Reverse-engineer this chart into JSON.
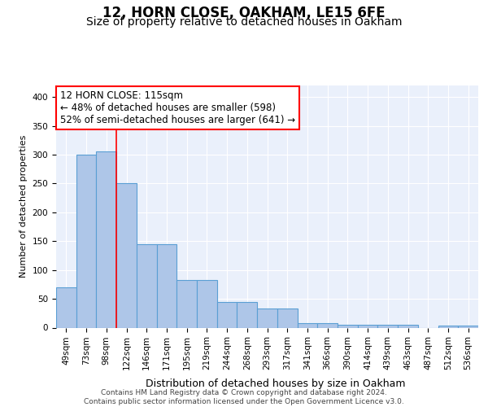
{
  "title1": "12, HORN CLOSE, OAKHAM, LE15 6FE",
  "title2": "Size of property relative to detached houses in Oakham",
  "xlabel": "Distribution of detached houses by size in Oakham",
  "ylabel": "Number of detached properties",
  "bar_labels": [
    "49sqm",
    "73sqm",
    "98sqm",
    "122sqm",
    "146sqm",
    "171sqm",
    "195sqm",
    "219sqm",
    "244sqm",
    "268sqm",
    "293sqm",
    "317sqm",
    "341sqm",
    "366sqm",
    "390sqm",
    "414sqm",
    "439sqm",
    "463sqm",
    "487sqm",
    "512sqm",
    "536sqm"
  ],
  "bar_heights": [
    70,
    300,
    305,
    250,
    145,
    145,
    83,
    83,
    44,
    44,
    33,
    33,
    8,
    8,
    5,
    5,
    5,
    5,
    0,
    3,
    3
  ],
  "bar_color": "#aec6e8",
  "bar_edge_color": "#5a9fd4",
  "vline_x": 2.5,
  "vline_color": "red",
  "annotation_text": "12 HORN CLOSE: 115sqm\n← 48% of detached houses are smaller (598)\n52% of semi-detached houses are larger (641) →",
  "annotation_box_color": "white",
  "annotation_box_edge": "red",
  "ylim": [
    0,
    420
  ],
  "yticks": [
    0,
    50,
    100,
    150,
    200,
    250,
    300,
    350,
    400
  ],
  "bg_color": "#eaf0fb",
  "grid_color": "white",
  "footer": "Contains HM Land Registry data © Crown copyright and database right 2024.\nContains public sector information licensed under the Open Government Licence v3.0.",
  "title1_fontsize": 12,
  "title2_fontsize": 10,
  "xlabel_fontsize": 9,
  "ylabel_fontsize": 8,
  "tick_fontsize": 7.5,
  "annotation_fontsize": 8.5,
  "footer_fontsize": 6.5
}
